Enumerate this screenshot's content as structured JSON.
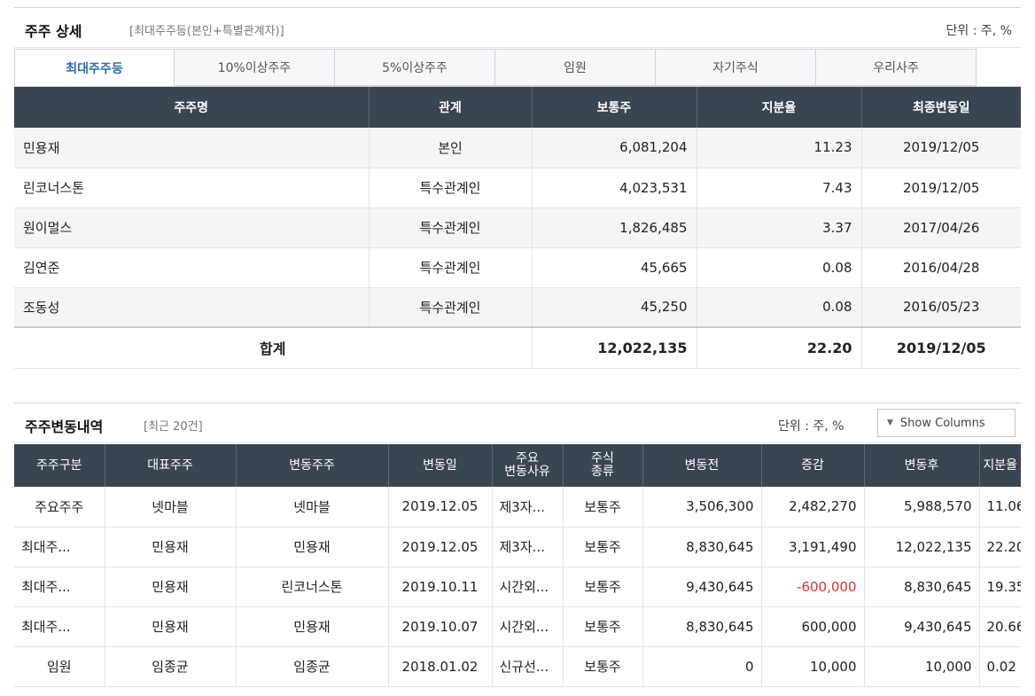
{
  "section1": {
    "title": "주주 상세",
    "subtitle": "[최대주주등(본인+특별관계자)]",
    "unit": "단위 : 주, %",
    "tabs": [
      "최대주주등",
      "10%이상주주",
      "5%이상주주",
      "임원",
      "자기주식",
      "우리사주"
    ],
    "active_tab": 0,
    "columns": [
      "주주명",
      "관계",
      "보통주",
      "지분율",
      "최종변동일"
    ],
    "rows": [
      {
        "name": "민용재",
        "relation": "본인",
        "common": "6,081,204",
        "ratio": "11.23",
        "date": "2019/12/05"
      },
      {
        "name": "린코너스톤",
        "relation": "특수관계인",
        "common": "4,023,531",
        "ratio": "7.43",
        "date": "2019/12/05"
      },
      {
        "name": "원이멀스",
        "relation": "특수관계인",
        "common": "1,826,485",
        "ratio": "3.37",
        "date": "2017/04/26"
      },
      {
        "name": "김연준",
        "relation": "특수관계인",
        "common": "45,665",
        "ratio": "0.08",
        "date": "2016/04/28"
      },
      {
        "name": "조동성",
        "relation": "특수관계인",
        "common": "45,250",
        "ratio": "0.08",
        "date": "2016/05/23"
      }
    ],
    "total": {
      "label": "합계",
      "common": "12,022,135",
      "ratio": "22.20",
      "date": "2019/12/05"
    }
  },
  "section2": {
    "title": "주주변동내역",
    "subtitle": "[최근 20건]",
    "unit": "단위 : 주, %",
    "show_columns": "Show Columns",
    "columns": [
      "주주구분",
      "대표주주",
      "변동주주",
      "변동일",
      "주요\n변동사유",
      "주식\n종류",
      "변동전",
      "증감",
      "변동후",
      "지분율"
    ],
    "rows": [
      {
        "type": "주요주주",
        "rep": "넷마블",
        "holder": "넷마블",
        "date": "2019.12.05",
        "reason": "제3자...",
        "kind": "보통주",
        "before": "3,506,300",
        "change": "2,482,270",
        "after": "5,988,570",
        "ratio": "11.06",
        "negative": false
      },
      {
        "type": "최대주...",
        "rep": "민용재",
        "holder": "민용재",
        "date": "2019.12.05",
        "reason": "제3자...",
        "kind": "보통주",
        "before": "8,830,645",
        "change": "3,191,490",
        "after": "12,022,135",
        "ratio": "22.20",
        "negative": false
      },
      {
        "type": "최대주...",
        "rep": "민용재",
        "holder": "린코너스톤",
        "date": "2019.10.11",
        "reason": "시간외...",
        "kind": "보통주",
        "before": "9,430,645",
        "change": "-600,000",
        "after": "8,830,645",
        "ratio": "19.35",
        "negative": true
      },
      {
        "type": "최대주...",
        "rep": "민용재",
        "holder": "민용재",
        "date": "2019.10.07",
        "reason": "시간외...",
        "kind": "보통주",
        "before": "8,830,645",
        "change": "600,000",
        "after": "9,430,645",
        "ratio": "20.66",
        "negative": false
      },
      {
        "type": "임원",
        "rep": "임종균",
        "holder": "임종균",
        "date": "2018.01.02",
        "reason": "신규선...",
        "kind": "보통주",
        "before": "0",
        "change": "10,000",
        "after": "10,000",
        "ratio": "0.02",
        "negative": false
      }
    ]
  },
  "colors": {
    "header_bg": "#3a4552",
    "active_tab": "#2a6db5",
    "negative": "#e0302e"
  }
}
